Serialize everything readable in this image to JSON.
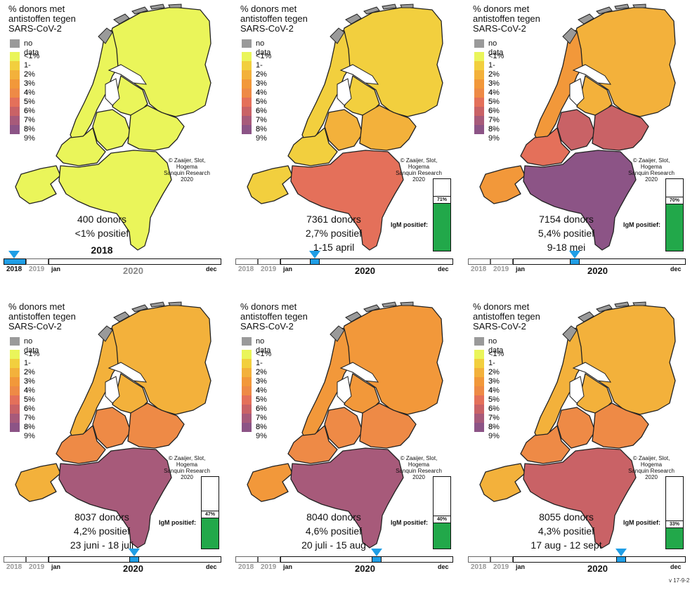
{
  "legend": {
    "title": "% donors met\nantistoffen tegen\nSARS-CoV-2",
    "no_data": "no data",
    "classes": [
      {
        "label": "<1%",
        "color": "#eaf55a"
      },
      {
        "label": "1-2%",
        "color": "#f2cf3e"
      },
      {
        "label": "2-3%",
        "color": "#f3b13b"
      },
      {
        "label": "3-4%",
        "color": "#f2983a"
      },
      {
        "label": "4-5%",
        "color": "#ee8a46"
      },
      {
        "label": "5-6%",
        "color": "#e4705a"
      },
      {
        "label": "6-7%",
        "color": "#c96266"
      },
      {
        "label": "7-8%",
        "color": "#a75a7a"
      },
      {
        "label": "8-9%",
        "color": "#8c5486"
      }
    ]
  },
  "credit": "© Zaaijer, Slot, Hogema\nSanquin Research\n2020",
  "igm_label": "IgM positief:",
  "timeline": {
    "y2018": "2018",
    "y2019": "2019",
    "jan": "jan",
    "dec": "dec",
    "y2020": "2020"
  },
  "version": "v 17-9-2",
  "panels": [
    {
      "donors": "400   donors",
      "pct": "<1% positief",
      "period": "2018",
      "period_bold": true,
      "igm": null,
      "time": 0,
      "colors": {
        "north": "#eaf55a",
        "northholland": "#eaf55a",
        "flevo": "#eaf55a",
        "utrecht": "#eaf55a",
        "gelderland": "#eaf55a",
        "southholland": "#eaf55a",
        "zeeland": "#eaf55a",
        "south": "#eaf55a"
      }
    },
    {
      "donors": "7361 donors",
      "pct": "2,7% positief",
      "period": "1-15 april",
      "period_bold": false,
      "igm": 71,
      "time": 0.2,
      "colors": {
        "north": "#f2cf3e",
        "northholland": "#f2cf3e",
        "flevo": "#f2cf3e",
        "utrecht": "#f3b13b",
        "gelderland": "#f3b13b",
        "southholland": "#f2cf3e",
        "zeeland": "#f2cf3e",
        "south": "#e4705a"
      }
    },
    {
      "donors": "7154 donors",
      "pct": "5,4% positief",
      "period": "9-18 mei",
      "period_bold": false,
      "igm": 70,
      "time": 0.36,
      "colors": {
        "north": "#f3b13b",
        "northholland": "#f2983a",
        "flevo": "#f3b13b",
        "utrecht": "#c96266",
        "gelderland": "#c96266",
        "southholland": "#e4705a",
        "zeeland": "#f2983a",
        "south": "#8c5486"
      }
    },
    {
      "donors": "8037 donors",
      "pct": "4,2% positief",
      "period": "23 juni - 18 juli",
      "period_bold": false,
      "igm": 47,
      "time": 0.5,
      "colors": {
        "north": "#f3b13b",
        "northholland": "#f3b13b",
        "flevo": "#f3b13b",
        "utrecht": "#ee8a46",
        "gelderland": "#ee8a46",
        "southholland": "#ee8a46",
        "zeeland": "#f3b13b",
        "south": "#a75a7a"
      }
    },
    {
      "donors": "8040 donors",
      "pct": "4,6% positief",
      "period": "20 juli - 15 aug",
      "period_bold": false,
      "igm": 40,
      "time": 0.56,
      "colors": {
        "north": "#f2983a",
        "northholland": "#f2983a",
        "flevo": "#f2983a",
        "utrecht": "#ee8a46",
        "gelderland": "#ee8a46",
        "southholland": "#ee8a46",
        "zeeland": "#f2983a",
        "south": "#a75a7a"
      }
    },
    {
      "donors": "8055 donors",
      "pct": "4,3% positief",
      "period": "17 aug - 12 sept",
      "period_bold": false,
      "igm": 33,
      "time": 0.63,
      "colors": {
        "north": "#f3b13b",
        "northholland": "#f3b13b",
        "flevo": "#f3b13b",
        "utrecht": "#ee8a46",
        "gelderland": "#ee8a46",
        "southholland": "#ee8a46",
        "zeeland": "#f3b13b",
        "south": "#c96266"
      }
    }
  ]
}
